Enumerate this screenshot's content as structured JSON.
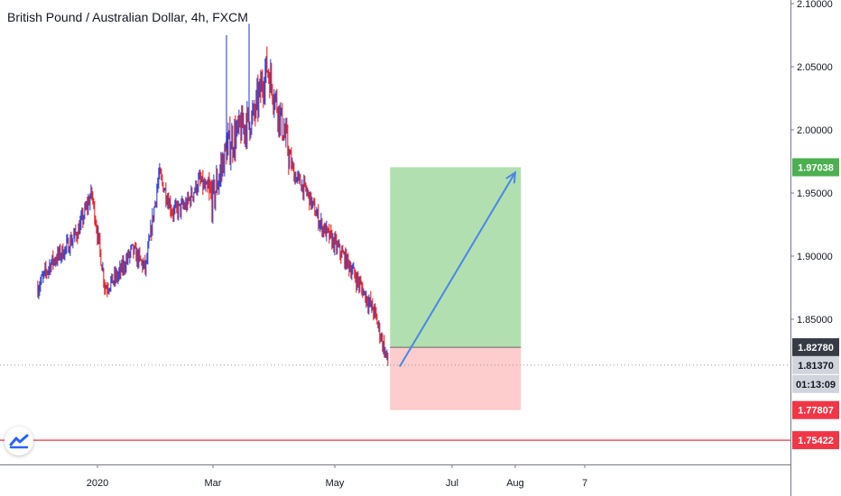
{
  "header": {
    "title": "British Pound / Australian Dollar, 4h, FXCM"
  },
  "colors": {
    "up_candle": "#2233cc",
    "down_candle": "#e01010",
    "target_zone": "#b2dfb0",
    "stop_zone": "#fdcccc",
    "arrow": "#4a86e8",
    "target_tag": "#4caf50",
    "entry_tag": "#363a45",
    "current_tag": "#d1d4dc",
    "stop_tag": "#f23645",
    "line_tag": "#f23645"
  },
  "chart_data": {
    "type": "candlestick",
    "symbol": "British Pound / Australian Dollar",
    "interval": "4h",
    "source": "FXCM",
    "y_ticks": [
      "2.10000",
      "2.05000",
      "2.00000",
      "1.95000",
      "1.90000",
      "1.85000"
    ],
    "x_ticks": [
      "2020",
      "Mar",
      "May",
      "Jul",
      "Aug",
      "7"
    ],
    "ylim": [
      1.73,
      2.1
    ],
    "grid": false,
    "approx_close_path": [
      {
        "x": "2019-12-01",
        "y": 1.875
      },
      {
        "x": "2019-12-08",
        "y": 1.895
      },
      {
        "x": "2019-12-15",
        "y": 1.905
      },
      {
        "x": "2019-12-22",
        "y": 1.92
      },
      {
        "x": "2019-12-29",
        "y": 1.95
      },
      {
        "x": "2020-01-05",
        "y": 1.875
      },
      {
        "x": "2020-01-12",
        "y": 1.885
      },
      {
        "x": "2020-01-19",
        "y": 1.905
      },
      {
        "x": "2020-01-26",
        "y": 1.89
      },
      {
        "x": "2020-02-02",
        "y": 1.965
      },
      {
        "x": "2020-02-09",
        "y": 1.935
      },
      {
        "x": "2020-02-16",
        "y": 1.94
      },
      {
        "x": "2020-02-23",
        "y": 1.96
      },
      {
        "x": "2020-03-01",
        "y": 1.945
      },
      {
        "x": "2020-03-08",
        "y": 1.985
      },
      {
        "x": "2020-03-15",
        "y": 2.0
      },
      {
        "x": "2020-03-22",
        "y": 2.01
      },
      {
        "x": "2020-03-29",
        "y": 2.05
      },
      {
        "x": "2020-04-05",
        "y": 2.01
      },
      {
        "x": "2020-04-12",
        "y": 1.965
      },
      {
        "x": "2020-04-19",
        "y": 1.95
      },
      {
        "x": "2020-04-26",
        "y": 1.925
      },
      {
        "x": "2020-05-03",
        "y": 1.91
      },
      {
        "x": "2020-05-10",
        "y": 1.895
      },
      {
        "x": "2020-05-17",
        "y": 1.875
      },
      {
        "x": "2020-05-24",
        "y": 1.855
      },
      {
        "x": "2020-05-31",
        "y": 1.815
      }
    ],
    "high_spike": 2.084,
    "position": {
      "start": "2020-06-01",
      "end": "2020-08-08",
      "entry": 1.8278,
      "target": 1.97038,
      "stop": 1.77807
    },
    "arrow": {
      "from": {
        "x": "2020-06-06",
        "y": 1.8125
      },
      "to": {
        "x": "2020-08-05",
        "y": 1.9662
      }
    },
    "current_price": 1.8137,
    "horizontal_line": 1.75422,
    "price_tags": {
      "target": "1.97038",
      "entry": "1.82780",
      "current": "1.81370",
      "countdown": "01:13:09",
      "stop": "1.77807",
      "line": "1.75422"
    }
  }
}
